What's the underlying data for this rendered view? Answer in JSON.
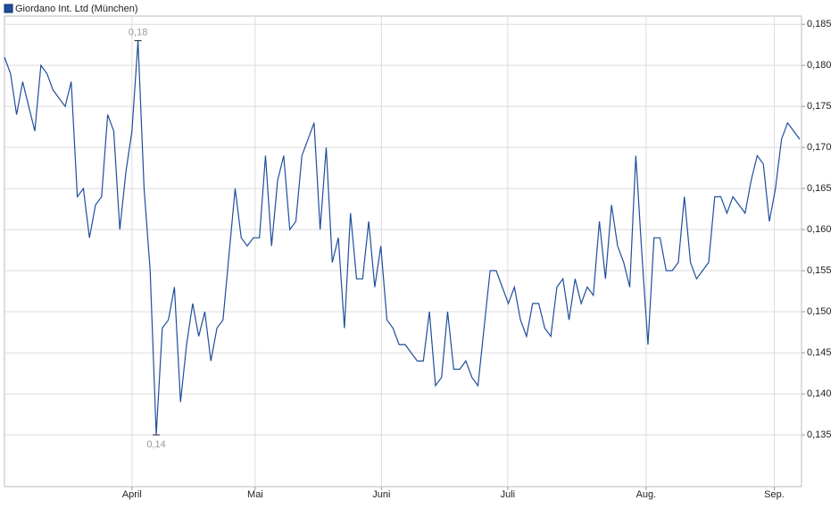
{
  "chart_data": {
    "type": "line",
    "series": [
      {
        "name": "Giordano Int. Ltd (München)",
        "color": "#1f4e9c",
        "values": [
          0.181,
          0.179,
          0.174,
          0.178,
          0.175,
          0.172,
          0.18,
          0.179,
          0.177,
          0.176,
          0.175,
          0.178,
          0.164,
          0.165,
          0.159,
          0.163,
          0.164,
          0.174,
          0.172,
          0.16,
          0.167,
          0.172,
          0.183,
          0.165,
          0.155,
          0.135,
          0.148,
          0.149,
          0.153,
          0.139,
          0.146,
          0.151,
          0.147,
          0.15,
          0.144,
          0.148,
          0.149,
          0.157,
          0.165,
          0.159,
          0.158,
          0.159,
          0.159,
          0.169,
          0.158,
          0.166,
          0.169,
          0.16,
          0.161,
          0.169,
          0.171,
          0.173,
          0.16,
          0.17,
          0.156,
          0.159,
          0.148,
          0.162,
          0.154,
          0.154,
          0.161,
          0.153,
          0.158,
          0.149,
          0.148,
          0.146,
          0.146,
          0.145,
          0.144,
          0.144,
          0.15,
          0.141,
          0.142,
          0.15,
          0.143,
          0.143,
          0.144,
          0.142,
          0.141,
          0.148,
          0.155,
          0.155,
          0.153,
          0.151,
          0.153,
          0.149,
          0.147,
          0.151,
          0.151,
          0.148,
          0.147,
          0.153,
          0.154,
          0.149,
          0.154,
          0.151,
          0.153,
          0.152,
          0.161,
          0.154,
          0.163,
          0.158,
          0.156,
          0.153,
          0.169,
          0.157,
          0.146,
          0.159,
          0.159,
          0.155,
          0.155,
          0.156,
          0.164,
          0.156,
          0.154,
          0.155,
          0.156,
          0.164,
          0.164,
          0.162,
          0.164,
          0.163,
          0.162,
          0.166,
          0.169,
          0.168,
          0.161,
          0.165,
          0.171,
          0.173,
          0.172,
          0.171
        ]
      }
    ],
    "high_label": "0,18",
    "low_label": "0,14",
    "xlim": [
      0,
      131
    ],
    "xticks": [
      {
        "value": 21.0,
        "label": "April"
      },
      {
        "value": 41.3,
        "label": "Mai"
      },
      {
        "value": 62.1,
        "label": "Juni"
      },
      {
        "value": 82.9,
        "label": "Juli"
      },
      {
        "value": 105.7,
        "label": "Aug."
      },
      {
        "value": 126.8,
        "label": "Sep."
      }
    ],
    "ylim": [
      0.1287,
      0.186
    ],
    "yticks": [
      {
        "value": 0.135,
        "label": "0,135"
      },
      {
        "value": 0.14,
        "label": "0,140"
      },
      {
        "value": 0.145,
        "label": "0,145"
      },
      {
        "value": 0.15,
        "label": "0,150"
      },
      {
        "value": 0.155,
        "label": "0,155"
      },
      {
        "value": 0.16,
        "label": "0,160"
      },
      {
        "value": 0.165,
        "label": "0,165"
      },
      {
        "value": 0.17,
        "label": "0,170"
      },
      {
        "value": 0.175,
        "label": "0,175"
      },
      {
        "value": 0.18,
        "label": "0,180"
      },
      {
        "value": 0.185,
        "label": "0,185"
      }
    ],
    "grid": true
  }
}
